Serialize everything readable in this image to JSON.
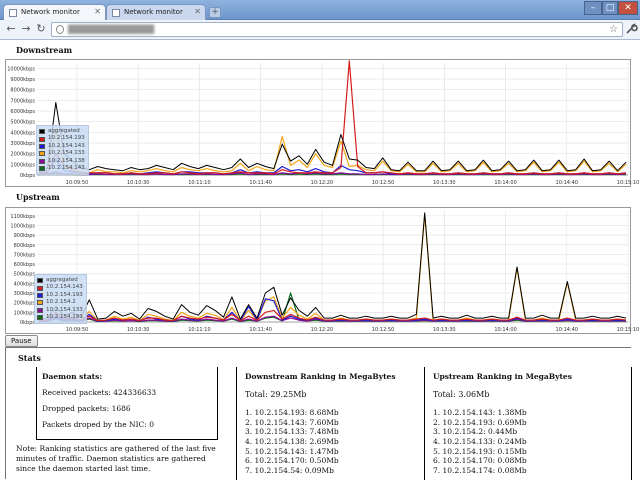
{
  "browser": {
    "tabs": [
      {
        "title": "Network monitor",
        "active": true
      },
      {
        "title": "Network monitor",
        "active": false
      }
    ],
    "new_tab": "+",
    "url": "██████████████",
    "controls": {
      "minimize": "–",
      "maximize": "□",
      "close": "✕"
    },
    "nav": {
      "back": "←",
      "forward": "→",
      "reload": "↻",
      "star": "☆",
      "wrench": "🔧"
    }
  },
  "colors": {
    "aggregated": "#000000",
    "s1": "#d41c1c",
    "s2": "#1c1cd8",
    "s3": "#f2a516",
    "s4": "#8a0a9a",
    "s5": "#0a6b1a",
    "grid": "#e4e4e4"
  },
  "downstream": {
    "title": "Downstream",
    "legend": [
      "aggregated",
      "10.2.154.193",
      "10.2.154.143",
      "10.2.154.133",
      "10.2.154.138",
      "10.2.154.143"
    ]
  },
  "upstream": {
    "title": "Upstream",
    "legend": [
      "aggregated",
      "10.2.154.143",
      "10.2.154.193",
      "10.2.154.2",
      "10.2.154.133",
      "10.2.154.193"
    ]
  },
  "chart_data": [
    {
      "type": "line",
      "title": "Downstream",
      "yticks": [
        "0kbps",
        "1000kbps",
        "2000kbps",
        "3000kbps",
        "4000kbps",
        "5000kbps",
        "6000kbps",
        "7000kbps",
        "8000kbps",
        "9000kbps",
        "10000kbps"
      ],
      "xticks": [
        "10:09:50",
        "10:10:30",
        "10:11:10",
        "10:11:40",
        "10:12:20",
        "10:12:50",
        "10:13:30",
        "10:14:00",
        "10:14:40",
        "10:15:10"
      ],
      "ylim": [
        0,
        10500
      ],
      "series": [
        {
          "name": "aggregated",
          "values": [
            200,
            600,
            6800,
            2000,
            1300,
            700,
            500,
            800,
            600,
            500,
            400,
            700,
            500,
            600,
            900,
            700,
            500,
            1100,
            800,
            600,
            900,
            700,
            500,
            700,
            1500,
            700,
            1100,
            800,
            600,
            2900,
            1300,
            1800,
            1000,
            2400,
            1200,
            900,
            3800,
            1500,
            1400,
            700,
            600,
            1600,
            500,
            400,
            1200,
            400,
            400,
            1300,
            400,
            500,
            1300,
            400,
            500,
            1400,
            400,
            500,
            1300,
            400,
            500,
            1400,
            400,
            500,
            1400,
            400,
            500,
            1500,
            400,
            500,
            1300,
            400,
            1200
          ]
        },
        {
          "name": "10.2.154.193",
          "values": [
            100,
            200,
            2000,
            900,
            400,
            200,
            200,
            200,
            200,
            100,
            100,
            200,
            100,
            100,
            200,
            200,
            100,
            300,
            200,
            100,
            200,
            200,
            100,
            200,
            300,
            200,
            200,
            200,
            100,
            500,
            300,
            200,
            200,
            300,
            200,
            200,
            700,
            10700,
            800,
            200,
            200,
            300,
            200,
            100,
            200,
            100,
            100,
            200,
            100,
            100,
            200,
            100,
            100,
            200,
            100,
            100,
            200,
            100,
            100,
            200,
            100,
            100,
            200,
            100,
            100,
            200,
            100,
            100,
            200,
            100,
            200
          ]
        },
        {
          "name": "10.2.154.143",
          "values": [
            100,
            300,
            1500,
            400,
            300,
            200,
            100,
            200,
            200,
            100,
            100,
            200,
            100,
            200,
            300,
            200,
            100,
            300,
            300,
            200,
            200,
            200,
            100,
            200,
            500,
            200,
            300,
            200,
            200,
            800,
            400,
            500,
            300,
            600,
            300,
            200,
            900,
            500,
            400,
            200,
            200,
            300,
            100,
            100,
            200,
            100,
            100,
            200,
            100,
            100,
            200,
            100,
            100,
            200,
            100,
            100,
            200,
            100,
            100,
            200,
            100,
            100,
            200,
            100,
            100,
            200,
            100,
            100,
            200,
            100,
            200
          ]
        },
        {
          "name": "10.2.154.133",
          "values": [
            100,
            400,
            4200,
            800,
            600,
            300,
            200,
            500,
            300,
            300,
            200,
            400,
            300,
            400,
            600,
            400,
            300,
            700,
            500,
            400,
            600,
            400,
            300,
            400,
            1100,
            400,
            800,
            500,
            400,
            3600,
            900,
            1400,
            700,
            2000,
            900,
            700,
            3200,
            800,
            900,
            500,
            400,
            1300,
            400,
            300,
            1000,
            300,
            300,
            1100,
            300,
            400,
            1100,
            300,
            400,
            1200,
            300,
            400,
            1100,
            300,
            400,
            1200,
            300,
            400,
            1200,
            300,
            400,
            1300,
            300,
            400,
            1100,
            300,
            1000
          ]
        },
        {
          "name": "10.2.154.138",
          "values": [
            50,
            100,
            300,
            100,
            100,
            50,
            50,
            100,
            50,
            50,
            50,
            100,
            50,
            50,
            100,
            50,
            50,
            100,
            100,
            50,
            100,
            50,
            50,
            100,
            200,
            50,
            100,
            100,
            50,
            200,
            100,
            200,
            100,
            200,
            100,
            100,
            200,
            100,
            100,
            50,
            50,
            100,
            50,
            50,
            100,
            50,
            50,
            100,
            50,
            50,
            100,
            50,
            50,
            100,
            50,
            50,
            100,
            50,
            50,
            100,
            50,
            50,
            100,
            50,
            50,
            100,
            50,
            50,
            100,
            50,
            100
          ]
        },
        {
          "name": "10.2.154.143",
          "values": [
            50,
            100,
            200,
            100,
            50,
            50,
            50,
            50,
            50,
            50,
            50,
            50,
            50,
            50,
            100,
            50,
            50,
            50,
            50,
            50,
            50,
            50,
            50,
            50,
            100,
            50,
            50,
            50,
            50,
            100,
            50,
            100,
            50,
            100,
            50,
            50,
            100,
            50,
            50,
            50,
            50,
            50,
            50,
            50,
            50,
            50,
            50,
            50,
            50,
            50,
            50,
            50,
            50,
            50,
            50,
            50,
            50,
            50,
            50,
            50,
            50,
            50,
            50,
            50,
            50,
            50,
            50,
            50,
            50,
            50,
            50
          ]
        }
      ]
    },
    {
      "type": "line",
      "title": "Upstream",
      "yticks": [
        "0kbps",
        "100kbps",
        "200kbps",
        "300kbps",
        "400kbps",
        "500kbps",
        "600kbps",
        "700kbps",
        "800kbps",
        "900kbps",
        "1000kbps",
        "1100kbps"
      ],
      "xticks": [
        "10:09:50",
        "10:10:30",
        "10:11:10",
        "10:11:40",
        "10:12:20",
        "10:12:50",
        "10:13:30",
        "10:14:00",
        "10:14:40",
        "10:15:10"
      ],
      "ylim": [
        0,
        1150
      ],
      "series": [
        {
          "name": "aggregated",
          "values": [
            20,
            40,
            160,
            60,
            100,
            50,
            230,
            30,
            40,
            110,
            60,
            90,
            30,
            140,
            110,
            60,
            30,
            180,
            100,
            70,
            170,
            120,
            50,
            260,
            30,
            180,
            40,
            300,
            360,
            70,
            250,
            120,
            60,
            150,
            40,
            40,
            70,
            40,
            40,
            60,
            40,
            40,
            60,
            40,
            40,
            80,
            1130,
            40,
            60,
            40,
            40,
            70,
            40,
            40,
            60,
            40,
            40,
            570,
            40,
            40,
            70,
            40,
            40,
            420,
            40,
            40,
            60,
            40,
            40,
            60,
            40
          ]
        },
        {
          "name": "10.2.154.143",
          "values": [
            10,
            20,
            100,
            30,
            40,
            20,
            60,
            15,
            20,
            40,
            20,
            30,
            15,
            40,
            40,
            20,
            15,
            60,
            40,
            30,
            50,
            40,
            20,
            80,
            15,
            60,
            20,
            100,
            120,
            30,
            80,
            40,
            20,
            50,
            20,
            20,
            30,
            20,
            20,
            30,
            20,
            20,
            30,
            20,
            20,
            30,
            40,
            20,
            30,
            20,
            20,
            30,
            20,
            20,
            30,
            20,
            20,
            50,
            20,
            20,
            30,
            20,
            20,
            40,
            20,
            20,
            30,
            20,
            20,
            30,
            20
          ]
        },
        {
          "name": "10.2.154.193",
          "values": [
            10,
            20,
            60,
            20,
            30,
            15,
            80,
            10,
            15,
            30,
            20,
            30,
            10,
            50,
            30,
            20,
            10,
            60,
            30,
            20,
            60,
            40,
            20,
            100,
            10,
            160,
            20,
            240,
            220,
            20,
            60,
            30,
            20,
            40,
            15,
            15,
            20,
            15,
            15,
            20,
            15,
            15,
            20,
            15,
            15,
            20,
            30,
            15,
            20,
            15,
            15,
            20,
            15,
            15,
            20,
            15,
            15,
            40,
            15,
            15,
            20,
            15,
            15,
            30,
            15,
            15,
            20,
            15,
            15,
            20,
            15
          ]
        },
        {
          "name": "10.2.154.2",
          "values": [
            10,
            20,
            90,
            30,
            50,
            20,
            110,
            15,
            20,
            60,
            30,
            50,
            15,
            80,
            60,
            30,
            15,
            100,
            60,
            40,
            90,
            70,
            25,
            150,
            15,
            120,
            20,
            220,
            260,
            40,
            150,
            70,
            30,
            90,
            20,
            20,
            40,
            20,
            20,
            30,
            20,
            20,
            30,
            20,
            20,
            40,
            1120,
            20,
            30,
            20,
            20,
            40,
            20,
            20,
            30,
            20,
            20,
            560,
            20,
            20,
            40,
            20,
            20,
            410,
            20,
            20,
            30,
            20,
            20,
            30,
            20
          ]
        },
        {
          "name": "10.2.154.133",
          "values": [
            5,
            10,
            40,
            15,
            20,
            10,
            40,
            8,
            10,
            20,
            10,
            15,
            8,
            20,
            20,
            10,
            8,
            30,
            20,
            15,
            30,
            20,
            10,
            40,
            8,
            30,
            10,
            50,
            60,
            15,
            40,
            20,
            10,
            30,
            10,
            10,
            15,
            10,
            10,
            15,
            10,
            10,
            15,
            10,
            10,
            15,
            20,
            10,
            15,
            10,
            10,
            15,
            10,
            10,
            15,
            10,
            10,
            30,
            10,
            10,
            15,
            10,
            10,
            20,
            10,
            10,
            15,
            10,
            10,
            15,
            10
          ]
        },
        {
          "name": "10.2.154.193",
          "values": [
            5,
            10,
            30,
            10,
            15,
            8,
            30,
            5,
            8,
            15,
            8,
            12,
            5,
            15,
            15,
            8,
            5,
            20,
            15,
            10,
            20,
            15,
            8,
            30,
            5,
            20,
            8,
            40,
            50,
            10,
            300,
            20,
            10,
            20,
            8,
            8,
            10,
            8,
            8,
            10,
            8,
            8,
            10,
            8,
            8,
            10,
            15,
            8,
            10,
            8,
            8,
            10,
            8,
            8,
            10,
            8,
            8,
            20,
            8,
            8,
            10,
            8,
            8,
            15,
            8,
            8,
            10,
            8,
            8,
            10,
            8
          ]
        }
      ]
    }
  ],
  "controls": {
    "pause": "Pause"
  },
  "stats": {
    "title": "Stats",
    "daemon": {
      "heading": "Daemon stats:",
      "received": "Received packets: 424336633",
      "dropped": "Dropped packets: 1686",
      "nic_dropped": "Packets droped by the NIC: 0"
    },
    "note": "Note: Ranking statistics are gathered of the last five minutes of traffic. Daemon statistics are gathered since the daemon started last time.",
    "downstream_ranking": {
      "heading": "Downstream Ranking in MegaBytes",
      "total": "Total: 29.25Mb",
      "items": [
        "1. 10.2.154.193: 8.68Mb",
        "2. 10.2.154.143: 7.60Mb",
        "3. 10.2.154.133: 7.48Mb",
        "4. 10.2.154.138: 2.69Mb",
        "5. 10.2.154.143: 1.47Mb",
        "6. 10.2.154.170: 0.50Mb",
        "7. 10.2.154.54: 0.09Mb"
      ]
    },
    "upstream_ranking": {
      "heading": "Upstream Ranking in MegaBytes",
      "total": "Total: 3.06Mb",
      "items": [
        "1. 10.2.154.143: 1.38Mb",
        "2. 10.2.154.193: 0.69Mb",
        "3. 10.2.154.2: 0.44Mb",
        "4. 10.2.154.133: 0.24Mb",
        "5. 10.2.154.193: 0.15Mb",
        "6. 10.2.154.170: 0.08Mb",
        "7. 10.2.154.174: 0.08Mb"
      ]
    }
  }
}
